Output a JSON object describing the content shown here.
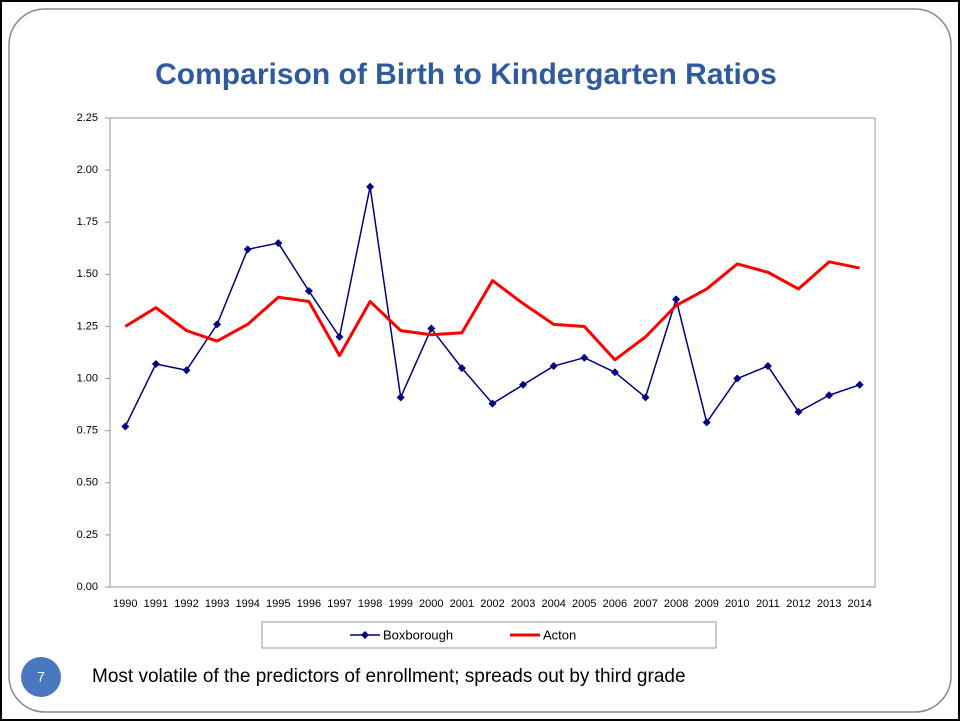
{
  "chart_data": {
    "type": "line",
    "title": "Comparison of Birth to Kindergarten Ratios",
    "categories": [
      "1990",
      "1991",
      "1992",
      "1993",
      "1994",
      "1995",
      "1996",
      "1997",
      "1998",
      "1999",
      "2000",
      "2001",
      "2002",
      "2003",
      "2004",
      "2005",
      "2006",
      "2007",
      "2008",
      "2009",
      "2010",
      "2011",
      "2012",
      "2013",
      "2014"
    ],
    "series": [
      {
        "name": "Boxborough",
        "color": "#000080",
        "marker": "diamond",
        "values": [
          0.77,
          1.07,
          1.04,
          1.26,
          1.62,
          1.65,
          1.42,
          1.2,
          1.92,
          0.91,
          1.24,
          1.05,
          0.88,
          0.97,
          1.06,
          1.1,
          1.03,
          0.91,
          1.38,
          0.79,
          1.0,
          1.06,
          0.84,
          0.92,
          0.97
        ]
      },
      {
        "name": "Acton",
        "color": "#ff0000",
        "values": [
          1.25,
          1.34,
          1.23,
          1.18,
          1.26,
          1.39,
          1.37,
          1.11,
          1.37,
          1.23,
          1.21,
          1.22,
          1.47,
          1.36,
          1.26,
          1.25,
          1.09,
          1.2,
          1.35,
          1.43,
          1.55,
          1.51,
          1.43,
          1.56,
          1.53
        ]
      }
    ],
    "ylim": [
      0,
      2.25
    ],
    "yticks": [
      {
        "value": 0,
        "label": "0.00"
      },
      {
        "value": 0.25,
        "label": "0.25"
      },
      {
        "value": 0.5,
        "label": "0.50"
      },
      {
        "value": 0.75,
        "label": "0.75"
      },
      {
        "value": 1,
        "label": "1.00"
      },
      {
        "value": 1.25,
        "label": "1.25"
      },
      {
        "value": 1.5,
        "label": "1.50"
      },
      {
        "value": 1.75,
        "label": "1.75"
      },
      {
        "value": 2,
        "label": "2.00"
      },
      {
        "value": 2.25,
        "label": "2.25"
      }
    ],
    "grid": false,
    "legend": "bottom"
  },
  "footer": "Most volatile of the predictors of enrollment; spreads out by third grade",
  "slide_number": "7"
}
